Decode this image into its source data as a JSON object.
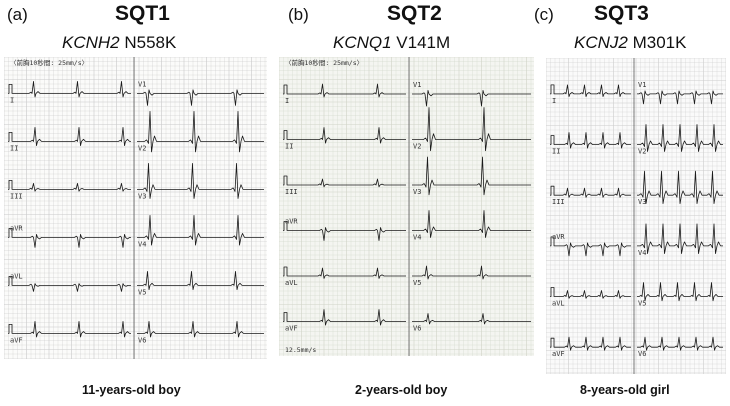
{
  "panels": [
    {
      "id": "a",
      "letter": "(a)",
      "title": "SQT1",
      "gene": "KCNH2",
      "mutation": " N558K",
      "caption": "11-years-old boy",
      "recording_speed": "〈前胸10秒間: 25mm/s〉",
      "leads_left": [
        "I",
        "II",
        "III",
        "aVR",
        "aVL",
        "aVF"
      ],
      "leads_right": [
        "V1",
        "V2",
        "V3",
        "V4",
        "V5",
        "V6"
      ]
    },
    {
      "id": "b",
      "letter": "(b)",
      "title": "SQT2",
      "gene": "KCNQ1",
      "mutation": " V141M",
      "caption": "2-years-old boy",
      "recording_speed": "〈前胸10秒間: 25mm/s〉",
      "bottom_speed": "12.5mm/s",
      "leads_left": [
        "I",
        "II",
        "III",
        "aVR",
        "aVL",
        "aVF"
      ],
      "leads_right": [
        "V1",
        "V2",
        "V3",
        "V4",
        "V5",
        "V6"
      ]
    },
    {
      "id": "c",
      "letter": "(c)",
      "title": "SQT3",
      "gene": "KCNJ2",
      "mutation": "  M301K",
      "caption": "8-years-old  girl",
      "leads_left": [
        "I",
        "II",
        "III",
        "aVR",
        "aVL",
        "aVF"
      ],
      "leads_right": [
        "V1",
        "V2",
        "V3",
        "V4",
        "V5",
        "V6"
      ]
    }
  ]
}
